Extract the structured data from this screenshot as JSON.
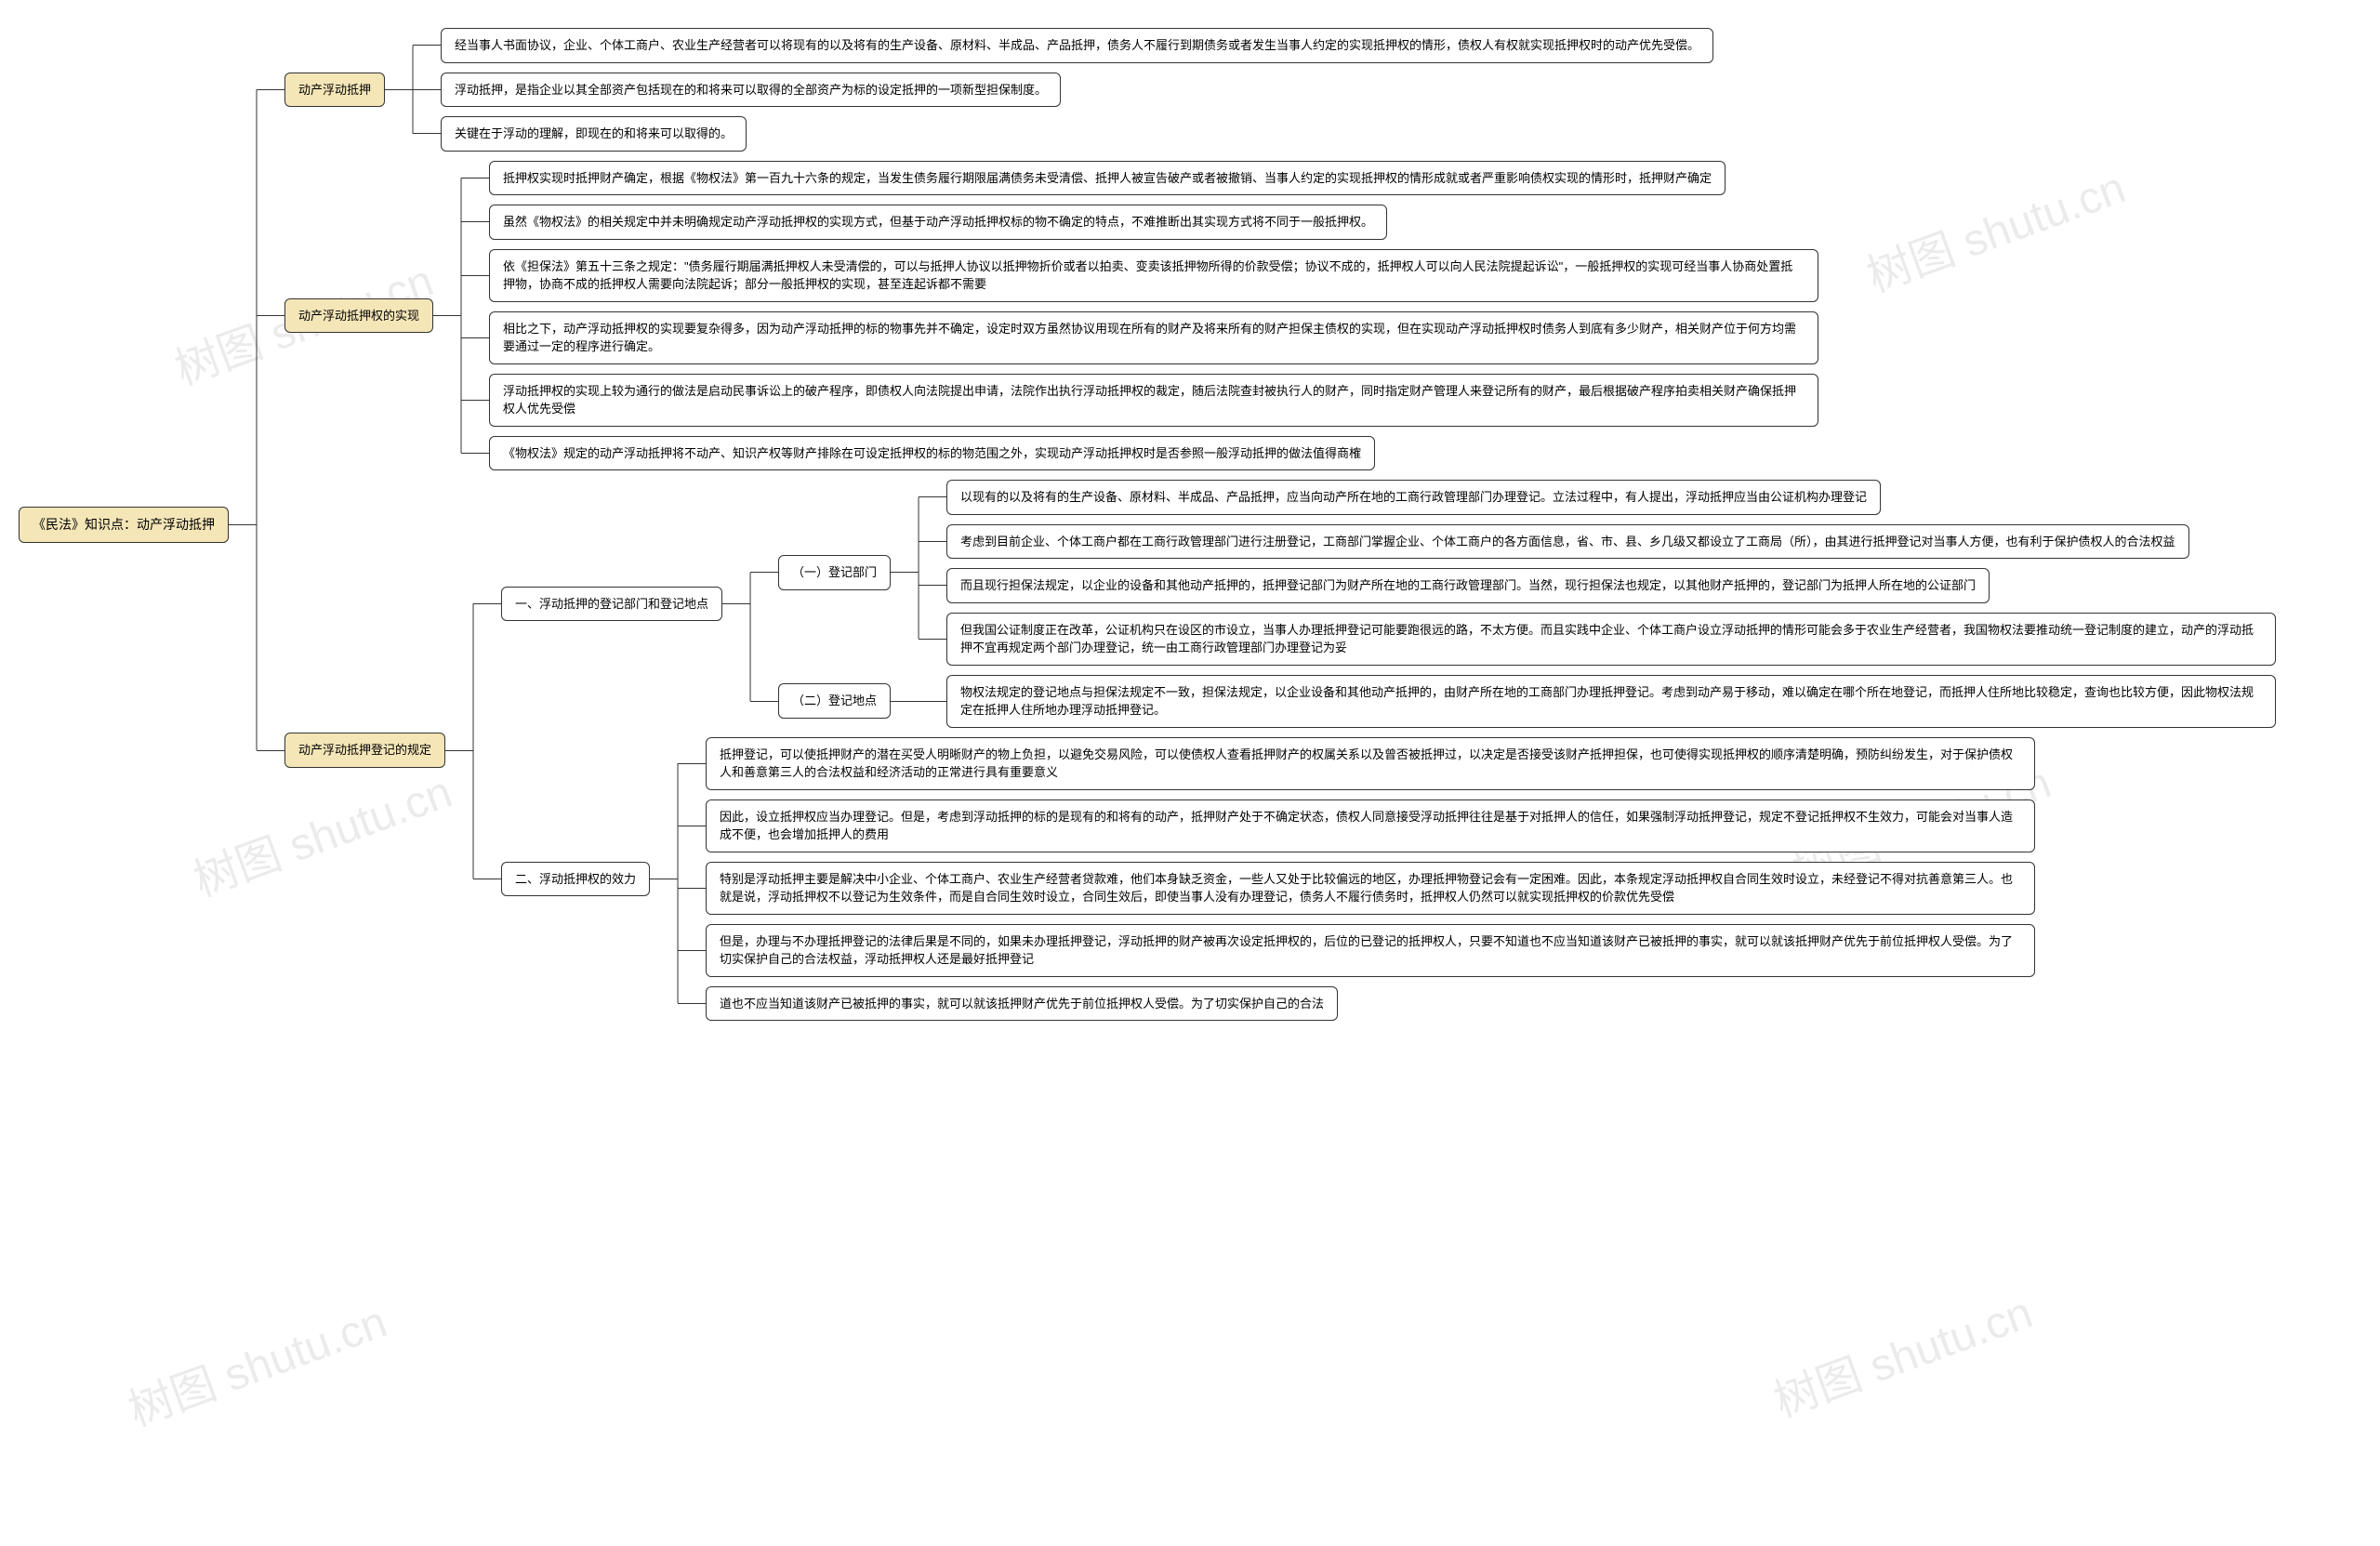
{
  "colors": {
    "root_bg": "#f5e6b8",
    "level2_bg": "#f5e6b8",
    "leaf_bg": "#ffffff",
    "border": "#333333",
    "line": "#333333",
    "page_bg": "#ffffff",
    "watermark": "rgba(0,0,0,0.08)"
  },
  "typography": {
    "font_family": "Microsoft YaHei",
    "root_fontsize": 14,
    "node_fontsize": 13,
    "line_height": 1.5
  },
  "layout": {
    "type": "mindmap-tree",
    "direction": "left-to-right",
    "node_border_radius": 6,
    "node_padding": "8px 14px",
    "h_gap": 60,
    "v_gap": 10,
    "leaf_max_width": 1400
  },
  "watermark_text": "树图 shutu.cn",
  "root": "《民法》知识点：动产浮动抵押",
  "nodes": {
    "n1": {
      "label": "动产浮动抵押",
      "children": [
        "经当事人书面协议，企业、个体工商户、农业生产经营者可以将现有的以及将有的生产设备、原材料、半成品、产品抵押，债务人不履行到期债务或者发生当事人约定的实现抵押权的情形，债权人有权就实现抵押权时的动产优先受偿。",
        "浮动抵押，是指企业以其全部资产包括现在的和将来可以取得的全部资产为标的设定抵押的一项新型担保制度。",
        "关键在于浮动的理解，即现在的和将来可以取得的。"
      ]
    },
    "n2": {
      "label": "动产浮动抵押权的实现",
      "children": [
        "抵押权实现时抵押财产确定，根据《物权法》第一百九十六条的规定，当发生债务履行期限届满债务未受清偿、抵押人被宣告破产或者被撤销、当事人约定的实现抵押权的情形成就或者严重影响债权实现的情形时，抵押财产确定",
        "虽然《物权法》的相关规定中并未明确规定动产浮动抵押权的实现方式，但基于动产浮动抵押权标的物不确定的特点，不难推断出其实现方式将不同于一般抵押权。",
        "依《担保法》第五十三条之规定：\"债务履行期届满抵押权人未受清偿的，可以与抵押人协议以抵押物折价或者以拍卖、变卖该抵押物所得的价款受偿；协议不成的，抵押权人可以向人民法院提起诉讼\"，一般抵押权的实现可经当事人协商处置抵押物，协商不成的抵押权人需要向法院起诉；部分一般抵押权的实现，甚至连起诉都不需要",
        "相比之下，动产浮动抵押权的实现要复杂得多，因为动产浮动抵押的标的物事先并不确定，设定时双方虽然协议用现在所有的财产及将来所有的财产担保主债权的实现，但在实现动产浮动抵押权时债务人到底有多少财产，相关财产位于何方均需要通过一定的程序进行确定。",
        "浮动抵押权的实现上较为通行的做法是启动民事诉讼上的破产程序，即债权人向法院提出申请，法院作出执行浮动抵押权的裁定，随后法院查封被执行人的财产，同时指定财产管理人来登记所有的财产，最后根据破产程序拍卖相关财产确保抵押权人优先受偿",
        "《物权法》规定的动产浮动抵押将不动产、知识产权等财产排除在可设定抵押权的标的物范围之外，实现动产浮动抵押权时是否参照一般浮动抵押的做法值得商榷"
      ]
    },
    "n3": {
      "label": "动产浮动抵押登记的规定",
      "children": {
        "n3_1": {
          "label": "一、浮动抵押的登记部门和登记地点",
          "children": {
            "n3_1_1": {
              "label": "（一）登记部门",
              "leaves": [
                "以现有的以及将有的生产设备、原材料、半成品、产品抵押，应当向动产所在地的工商行政管理部门办理登记。立法过程中，有人提出，浮动抵押应当由公证机构办理登记",
                "考虑到目前企业、个体工商户都在工商行政管理部门进行注册登记，工商部门掌握企业、个体工商户的各方面信息，省、市、县、乡几级又都设立了工商局（所），由其进行抵押登记对当事人方便，也有利于保护债权人的合法权益",
                "而且现行担保法规定，以企业的设备和其他动产抵押的，抵押登记部门为财产所在地的工商行政管理部门。当然，现行担保法也规定，以其他财产抵押的，登记部门为抵押人所在地的公证部门",
                "但我国公证制度正在改革，公证机构只在设区的市设立，当事人办理抵押登记可能要跑很远的路，不太方便。而且实践中企业、个体工商户设立浮动抵押的情形可能会多于农业生产经营者，我国物权法要推动统一登记制度的建立，动产的浮动抵押不宜再规定两个部门办理登记，统一由工商行政管理部门办理登记为妥"
              ]
            },
            "n3_1_2": {
              "label": "（二）登记地点",
              "leaves": [
                "物权法规定的登记地点与担保法规定不一致，担保法规定，以企业设备和其他动产抵押的，由财产所在地的工商部门办理抵押登记。考虑到动产易于移动，难以确定在哪个所在地登记，而抵押人住所地比较稳定，查询也比较方便，因此物权法规定在抵押人住所地办理浮动抵押登记。"
              ]
            }
          }
        },
        "n3_2": {
          "label": "二、浮动抵押权的效力",
          "leaves": [
            "抵押登记，可以使抵押财产的潜在买受人明晰财产的物上负担，以避免交易风险，可以使债权人查看抵押财产的权属关系以及曾否被抵押过，以决定是否接受该财产抵押担保，也可使得实现抵押权的顺序清楚明确，预防纠纷发生，对于保护债权人和善意第三人的合法权益和经济活动的正常进行具有重要意义",
            "因此，设立抵押权应当办理登记。但是，考虑到浮动抵押的标的是现有的和将有的动产，抵押财产处于不确定状态，债权人同意接受浮动抵押往往是基于对抵押人的信任，如果强制浮动抵押登记，规定不登记抵押权不生效力，可能会对当事人造成不便，也会增加抵押人的费用",
            "特别是浮动抵押主要是解决中小企业、个体工商户、农业生产经营者贷款难，他们本身缺乏资金，一些人又处于比较偏远的地区，办理抵押物登记会有一定困难。因此，本条规定浮动抵押权自合同生效时设立，未经登记不得对抗善意第三人。也就是说，浮动抵押权不以登记为生效条件，而是自合同生效时设立，合同生效后，即使当事人没有办理登记，债务人不履行债务时，抵押权人仍然可以就实现抵押权的价款优先受偿",
            "但是，办理与不办理抵押登记的法律后果是不同的，如果未办理抵押登记，浮动抵押的财产被再次设定抵押权的，后位的已登记的抵押权人，只要不知道也不应当知道该财产已被抵押的事实，就可以就该抵押财产优先于前位抵押权人受偿。为了切实保护自己的合法权益，浮动抵押权人还是最好抵押登记",
            "道也不应当知道该财产已被抵押的事实，就可以就该抵押财产优先于前位抵押权人受偿。为了切实保护自己的合法"
          ]
        }
      }
    }
  }
}
